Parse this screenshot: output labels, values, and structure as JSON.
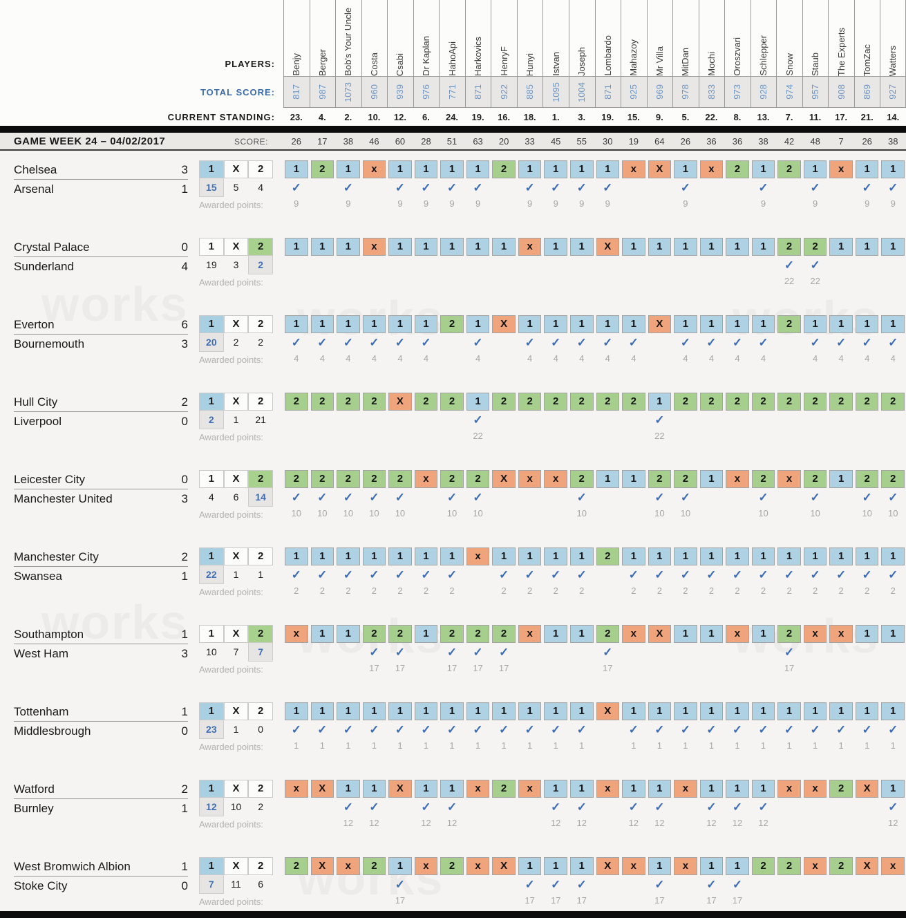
{
  "watermark_text": "works",
  "awarded_points_label": "Awarded points:",
  "odds_headers": [
    "1",
    "X",
    "2"
  ],
  "colors": {
    "pick_home": "#aed1e3",
    "pick_away": "#a6cf8e",
    "pick_draw": "#f0a47c",
    "accent_blue": "#3f6eb5",
    "score_box_bg": "#e8e7e5"
  },
  "header": {
    "players_label": "PLAYERS:",
    "total_score_label": "TOTAL SCORE:",
    "current_standing_label": "CURRENT STANDING:",
    "gameweek_title": "GAME WEEK 24 – 04/02/2017",
    "score_label": "SCORE:",
    "players": [
      "Benjy",
      "Berger",
      "Bob's Your Uncle",
      "Costa",
      "Csabi",
      "Dr Kaplan",
      "HahoApi",
      "Harkovics",
      "HenryF",
      "Hunyi",
      "Istvan",
      "Joseph",
      "Lombardo",
      "Mahazoy",
      "Mr Villa",
      "MitDan",
      "Mochi",
      "Oroszvari",
      "Schlepper",
      "Snow",
      "Staub",
      "The Experts",
      "TomZac",
      "Watters"
    ],
    "total_scores": [
      817,
      987,
      1073,
      960,
      939,
      976,
      771,
      871,
      922,
      885,
      1095,
      1004,
      871,
      925,
      969,
      978,
      833,
      973,
      928,
      974,
      957,
      908,
      869,
      927
    ],
    "standings": [
      "23.",
      "4.",
      "2.",
      "10.",
      "12.",
      "6.",
      "24.",
      "19.",
      "16.",
      "18.",
      "1.",
      "3.",
      "19.",
      "15.",
      "9.",
      "5.",
      "22.",
      "8.",
      "13.",
      "7.",
      "11.",
      "17.",
      "21.",
      "14."
    ],
    "week_scores": [
      26,
      17,
      38,
      46,
      60,
      28,
      51,
      63,
      20,
      33,
      45,
      55,
      30,
      19,
      64,
      26,
      36,
      36,
      38,
      42,
      48,
      7,
      26,
      38
    ]
  },
  "matches": [
    {
      "home": "Chelsea",
      "home_score": 3,
      "away": "Arsenal",
      "away_score": 1,
      "result": "1",
      "odds": [
        "15",
        "5",
        "4"
      ],
      "picks": [
        "1",
        "2",
        "1",
        "x",
        "1",
        "1",
        "1",
        "1",
        "2",
        "1",
        "1",
        "1",
        "1",
        "x",
        "X",
        "1",
        "x",
        "2",
        "1",
        "2",
        "1",
        "x",
        "1",
        "1"
      ],
      "points": [
        9,
        null,
        9,
        null,
        9,
        9,
        9,
        9,
        null,
        9,
        9,
        9,
        9,
        null,
        null,
        9,
        null,
        null,
        9,
        null,
        9,
        null,
        9,
        9
      ]
    },
    {
      "home": "Crystal Palace",
      "home_score": 0,
      "away": "Sunderland",
      "away_score": 4,
      "result": "2",
      "odds": [
        "19",
        "3",
        "2"
      ],
      "picks": [
        "1",
        "1",
        "1",
        "x",
        "1",
        "1",
        "1",
        "1",
        "1",
        "x",
        "1",
        "1",
        "X",
        "1",
        "1",
        "1",
        "1",
        "1",
        "1",
        "2",
        "2",
        "1",
        "1",
        "1"
      ],
      "points": [
        null,
        null,
        null,
        null,
        null,
        null,
        null,
        null,
        null,
        null,
        null,
        null,
        null,
        null,
        null,
        null,
        null,
        null,
        null,
        22,
        22,
        null,
        null,
        null
      ]
    },
    {
      "home": "Everton",
      "home_score": 6,
      "away": "Bournemouth",
      "away_score": 3,
      "result": "1",
      "odds": [
        "20",
        "2",
        "2"
      ],
      "picks": [
        "1",
        "1",
        "1",
        "1",
        "1",
        "1",
        "2",
        "1",
        "X",
        "1",
        "1",
        "1",
        "1",
        "1",
        "X",
        "1",
        "1",
        "1",
        "1",
        "2",
        "1",
        "1",
        "1",
        "1"
      ],
      "points": [
        4,
        4,
        4,
        4,
        4,
        4,
        null,
        4,
        null,
        4,
        4,
        4,
        4,
        4,
        null,
        4,
        4,
        4,
        4,
        null,
        4,
        4,
        4,
        4
      ]
    },
    {
      "home": "Hull City",
      "home_score": 2,
      "away": "Liverpool",
      "away_score": 0,
      "result": "1",
      "odds": [
        "2",
        "1",
        "21"
      ],
      "picks": [
        "2",
        "2",
        "2",
        "2",
        "X",
        "2",
        "2",
        "1",
        "2",
        "2",
        "2",
        "2",
        "2",
        "2",
        "1",
        "2",
        "2",
        "2",
        "2",
        "2",
        "2",
        "2",
        "2",
        "2"
      ],
      "points": [
        null,
        null,
        null,
        null,
        null,
        null,
        null,
        22,
        null,
        null,
        null,
        null,
        null,
        null,
        22,
        null,
        null,
        null,
        null,
        null,
        null,
        null,
        null,
        null
      ]
    },
    {
      "home": "Leicester City",
      "home_score": 0,
      "away": "Manchester United",
      "away_score": 3,
      "result": "2",
      "odds": [
        "4",
        "6",
        "14"
      ],
      "picks": [
        "2",
        "2",
        "2",
        "2",
        "2",
        "x",
        "2",
        "2",
        "X",
        "x",
        "x",
        "2",
        "1",
        "1",
        "2",
        "2",
        "1",
        "x",
        "2",
        "x",
        "2",
        "1",
        "2",
        "2"
      ],
      "points": [
        10,
        10,
        10,
        10,
        10,
        null,
        10,
        10,
        null,
        null,
        null,
        10,
        null,
        null,
        10,
        10,
        null,
        null,
        10,
        null,
        10,
        null,
        10,
        10
      ]
    },
    {
      "home": "Manchester City",
      "home_score": 2,
      "away": "Swansea",
      "away_score": 1,
      "result": "1",
      "odds": [
        "22",
        "1",
        "1"
      ],
      "picks": [
        "1",
        "1",
        "1",
        "1",
        "1",
        "1",
        "1",
        "x",
        "1",
        "1",
        "1",
        "1",
        "2",
        "1",
        "1",
        "1",
        "1",
        "1",
        "1",
        "1",
        "1",
        "1",
        "1",
        "1"
      ],
      "points": [
        2,
        2,
        2,
        2,
        2,
        2,
        2,
        null,
        2,
        2,
        2,
        2,
        null,
        2,
        2,
        2,
        2,
        2,
        2,
        2,
        2,
        2,
        2,
        2
      ]
    },
    {
      "home": "Southampton",
      "home_score": 1,
      "away": "West Ham",
      "away_score": 3,
      "result": "2",
      "odds": [
        "10",
        "7",
        "7"
      ],
      "picks": [
        "x",
        "1",
        "1",
        "2",
        "2",
        "1",
        "2",
        "2",
        "2",
        "x",
        "1",
        "1",
        "2",
        "x",
        "X",
        "1",
        "1",
        "x",
        "1",
        "2",
        "x",
        "x",
        "1",
        "1"
      ],
      "points": [
        null,
        null,
        null,
        17,
        17,
        null,
        17,
        17,
        17,
        null,
        null,
        null,
        17,
        null,
        null,
        null,
        null,
        null,
        null,
        17,
        null,
        null,
        null,
        null
      ]
    },
    {
      "home": "Tottenham",
      "home_score": 1,
      "away": "Middlesbrough",
      "away_score": 0,
      "result": "1",
      "odds": [
        "23",
        "1",
        "0"
      ],
      "picks": [
        "1",
        "1",
        "1",
        "1",
        "1",
        "1",
        "1",
        "1",
        "1",
        "1",
        "1",
        "1",
        "X",
        "1",
        "1",
        "1",
        "1",
        "1",
        "1",
        "1",
        "1",
        "1",
        "1",
        "1"
      ],
      "points": [
        1,
        1,
        1,
        1,
        1,
        1,
        1,
        1,
        1,
        1,
        1,
        1,
        null,
        1,
        1,
        1,
        1,
        1,
        1,
        1,
        1,
        1,
        1,
        1
      ]
    },
    {
      "home": "Watford",
      "home_score": 2,
      "away": "Burnley",
      "away_score": 1,
      "result": "1",
      "odds": [
        "12",
        "10",
        "2"
      ],
      "picks": [
        "x",
        "X",
        "1",
        "1",
        "X",
        "1",
        "1",
        "x",
        "2",
        "x",
        "1",
        "1",
        "x",
        "1",
        "1",
        "x",
        "1",
        "1",
        "1",
        "x",
        "x",
        "2",
        "X",
        "1"
      ],
      "points": [
        null,
        null,
        12,
        12,
        null,
        12,
        12,
        null,
        null,
        null,
        12,
        12,
        null,
        12,
        12,
        null,
        12,
        12,
        12,
        null,
        null,
        null,
        null,
        12
      ]
    },
    {
      "home": "West Bromwich Albion",
      "home_score": 1,
      "away": "Stoke City",
      "away_score": 0,
      "result": "1",
      "odds": [
        "7",
        "11",
        "6"
      ],
      "picks": [
        "2",
        "X",
        "x",
        "2",
        "1",
        "x",
        "2",
        "x",
        "X",
        "1",
        "1",
        "1",
        "X",
        "x",
        "1",
        "x",
        "1",
        "1",
        "2",
        "2",
        "x",
        "2",
        "X",
        "x"
      ],
      "points": [
        null,
        null,
        null,
        null,
        17,
        null,
        null,
        null,
        null,
        17,
        17,
        17,
        null,
        null,
        17,
        null,
        17,
        17,
        null,
        null,
        null,
        null,
        null,
        null
      ]
    }
  ]
}
